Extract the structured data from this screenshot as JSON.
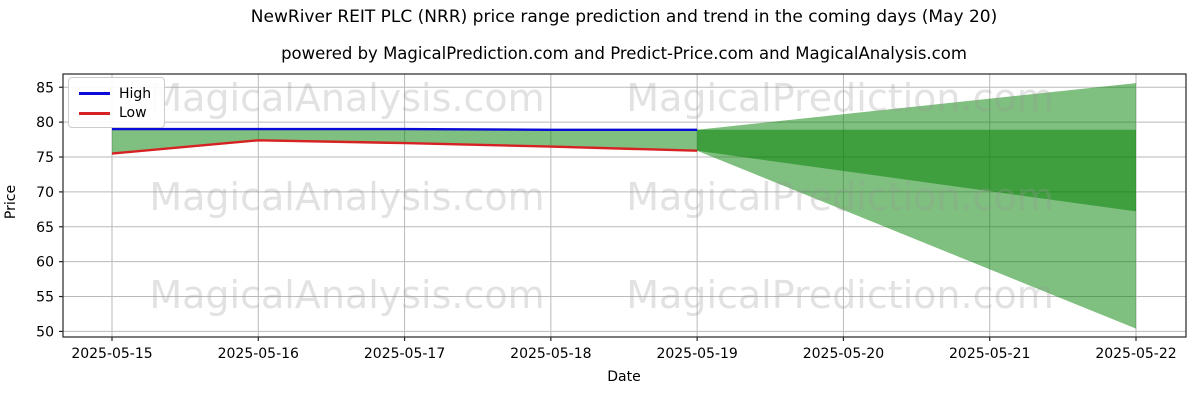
{
  "title": "NewRiver REIT PLC (NRR) price range prediction and trend in the coming days (May 20)",
  "subtitle": "powered by MagicalPrediction.com and Predict-Price.com and MagicalAnalysis.com",
  "legend": {
    "items": [
      {
        "label": "High",
        "color": "#0b0bd9"
      },
      {
        "label": "Low",
        "color": "#d62222"
      }
    ]
  },
  "watermarks": {
    "left_text": "MagicalAnalysis.com",
    "right_text": "MagicalPrediction.com",
    "color": "rgba(150,150,150,0.28)"
  },
  "chart_data": {
    "type": "line",
    "title": "NewRiver REIT PLC (NRR) price range prediction and trend in the coming days (May 20)",
    "xlabel": "Date",
    "ylabel": "Price",
    "x": [
      "2025-05-15",
      "2025-05-16",
      "2025-05-17",
      "2025-05-18",
      "2025-05-19",
      "2025-05-20",
      "2025-05-21",
      "2025-05-22"
    ],
    "yticks": [
      50,
      55,
      60,
      65,
      70,
      75,
      80,
      85
    ],
    "ylim": [
      49.2,
      86.9
    ],
    "grid": true,
    "legend_position": "upper left",
    "series": [
      {
        "name": "High",
        "color": "#0b0bd9",
        "x": [
          "2025-05-15",
          "2025-05-16",
          "2025-05-17",
          "2025-05-18",
          "2025-05-19"
        ],
        "values": [
          79.0,
          79.0,
          79.0,
          78.9,
          78.9
        ]
      },
      {
        "name": "Low",
        "color": "#d62222",
        "x": [
          "2025-05-15",
          "2025-05-16",
          "2025-05-17",
          "2025-05-18",
          "2025-05-19"
        ],
        "values": [
          75.5,
          77.4,
          77.0,
          76.5,
          75.9
        ]
      }
    ],
    "historical_band": {
      "fill": "rgba(0,128,0,0.5)",
      "between": [
        "High",
        "Low"
      ],
      "x_range": [
        "2025-05-15",
        "2025-05-19"
      ]
    },
    "forecast": {
      "x_range": [
        "2025-05-19",
        "2025-05-22"
      ],
      "fill": "rgba(0,128,0,0.5)",
      "outer_band": {
        "upper_start": 78.9,
        "upper_end": 85.6,
        "lower_start": 75.9,
        "lower_end": 50.4
      },
      "inner_band": {
        "upper_start": 78.9,
        "upper_end": 78.9,
        "lower_start": 75.9,
        "lower_end": 67.2
      }
    }
  }
}
